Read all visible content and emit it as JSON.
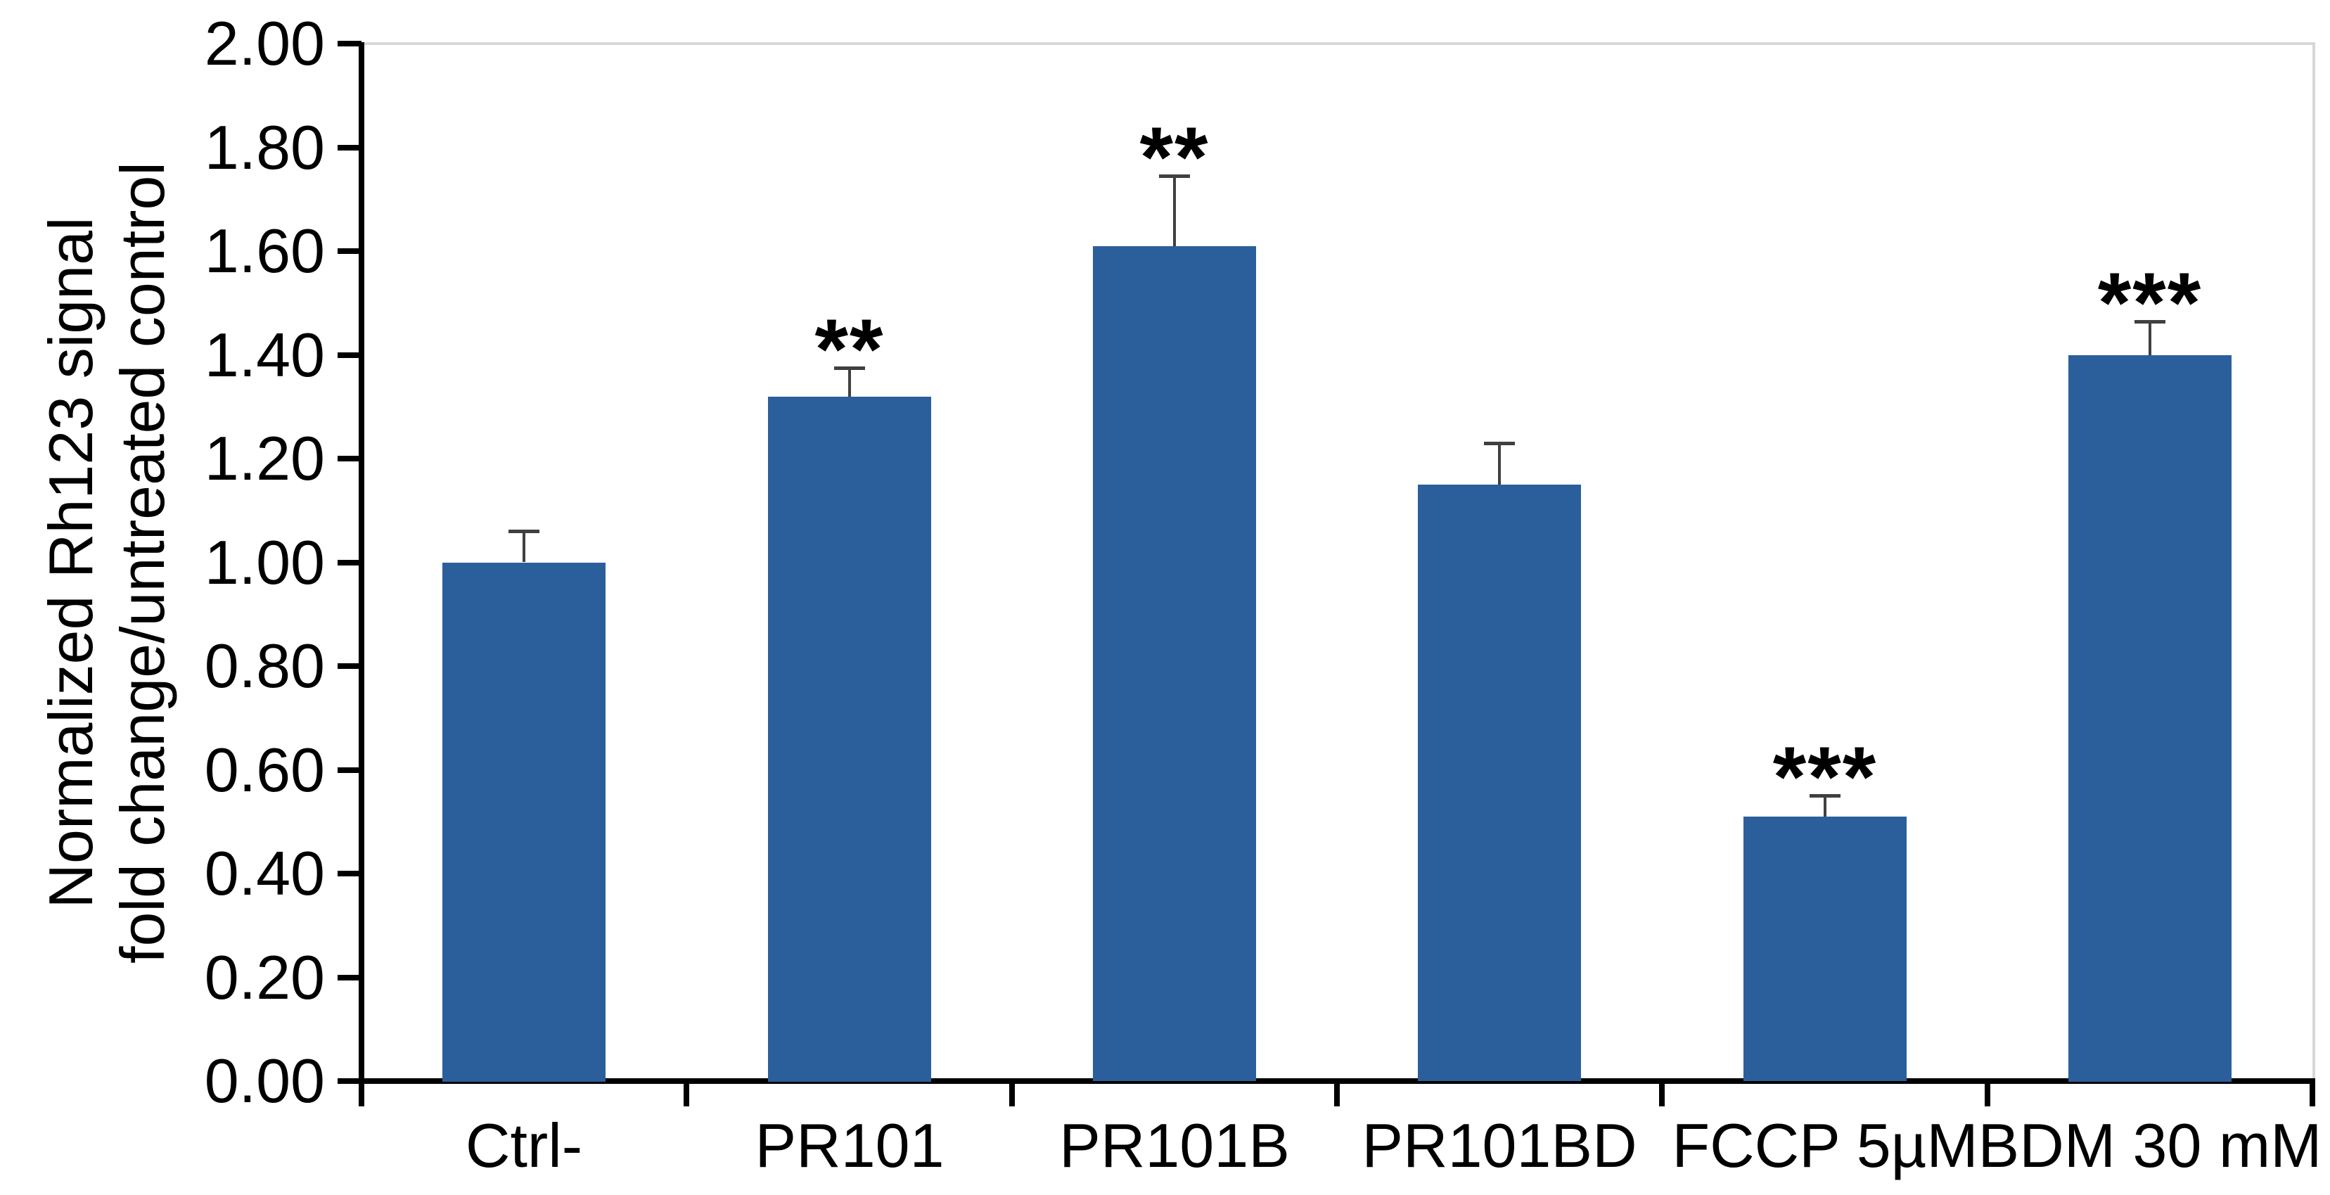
{
  "chart_data": {
    "type": "bar",
    "title": "",
    "xlabel": "",
    "ylabel_line1": "Normalized Rh123 signal",
    "ylabel_line2": "fold change/untreated control",
    "categories": [
      "Ctrl-",
      "PR101",
      "PR101B",
      "PR101BD",
      "FCCP 5µM",
      "BDM 30 mM"
    ],
    "values": [
      1.0,
      1.32,
      1.61,
      1.15,
      0.51,
      1.4
    ],
    "errors": [
      0.06,
      0.055,
      0.135,
      0.08,
      0.04,
      0.065
    ],
    "significance": [
      "",
      "**",
      "**",
      "",
      "***",
      "***"
    ],
    "ylim": [
      0,
      2
    ],
    "ytick_step": 0.2,
    "ytick_labels": [
      "0.00",
      "0.20",
      "0.40",
      "0.60",
      "0.80",
      "1.00",
      "1.20",
      "1.40",
      "1.60",
      "1.80",
      "2.00"
    ],
    "grid": false,
    "legend": false,
    "bar_color": "#2b5f9c",
    "axis_color": "#000000",
    "error_bar_color": "#404040",
    "plot_border_color": "#d7d7d7"
  }
}
